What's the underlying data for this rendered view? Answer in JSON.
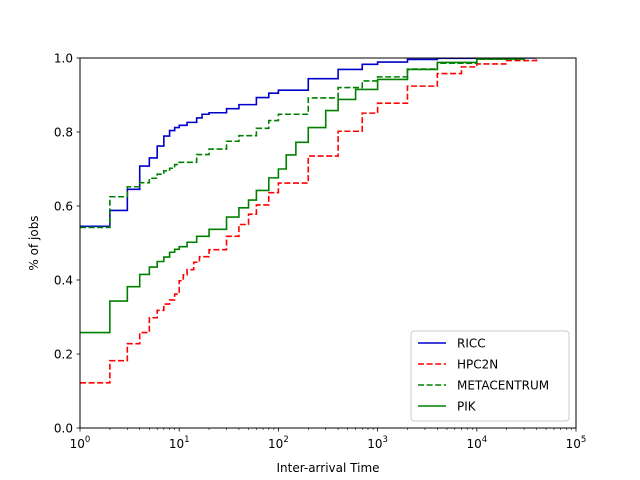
{
  "chart_data": {
    "type": "line",
    "title": "",
    "xlabel": "Inter-arrival Time",
    "ylabel": "% of jobs",
    "xscale": "log",
    "xlim": [
      1,
      100000
    ],
    "ylim": [
      0,
      1.0
    ],
    "x_ticks": [
      {
        "base": "10",
        "exp": "0"
      },
      {
        "base": "10",
        "exp": "1"
      },
      {
        "base": "10",
        "exp": "2"
      },
      {
        "base": "10",
        "exp": "3"
      },
      {
        "base": "10",
        "exp": "4"
      },
      {
        "base": "10",
        "exp": "5"
      }
    ],
    "y_ticks": [
      "0.0",
      "0.2",
      "0.4",
      "0.6",
      "0.8",
      "1.0"
    ],
    "grid": false,
    "legend_position": "bottom-right",
    "series": [
      {
        "name": "RICC",
        "color": "#0000cc",
        "dash": "solid",
        "step": true,
        "points": [
          [
            1,
            0.545
          ],
          [
            2,
            0.588
          ],
          [
            3,
            0.645
          ],
          [
            4,
            0.708
          ],
          [
            5,
            0.73
          ],
          [
            6,
            0.762
          ],
          [
            7,
            0.789
          ],
          [
            8,
            0.804
          ],
          [
            9,
            0.812
          ],
          [
            10,
            0.818
          ],
          [
            12,
            0.826
          ],
          [
            15,
            0.838
          ],
          [
            17,
            0.848
          ],
          [
            20,
            0.852
          ],
          [
            30,
            0.863
          ],
          [
            40,
            0.874
          ],
          [
            60,
            0.893
          ],
          [
            80,
            0.905
          ],
          [
            100,
            0.913
          ],
          [
            200,
            0.944
          ],
          [
            400,
            0.969
          ],
          [
            700,
            0.983
          ],
          [
            1000,
            0.989
          ],
          [
            2000,
            0.996
          ],
          [
            4000,
            0.999
          ],
          [
            10000,
            1.0
          ],
          [
            40000,
            1.0
          ]
        ]
      },
      {
        "name": "HPC2N",
        "color": "#ff0000",
        "dash": "dashed",
        "step": true,
        "points": [
          [
            1,
            0.122
          ],
          [
            2,
            0.182
          ],
          [
            3,
            0.228
          ],
          [
            4,
            0.258
          ],
          [
            5,
            0.298
          ],
          [
            6,
            0.318
          ],
          [
            7,
            0.335
          ],
          [
            8,
            0.346
          ],
          [
            9,
            0.362
          ],
          [
            10,
            0.398
          ],
          [
            11,
            0.414
          ],
          [
            12,
            0.428
          ],
          [
            14,
            0.448
          ],
          [
            16,
            0.463
          ],
          [
            20,
            0.482
          ],
          [
            30,
            0.518
          ],
          [
            40,
            0.55
          ],
          [
            50,
            0.578
          ],
          [
            60,
            0.603
          ],
          [
            80,
            0.636
          ],
          [
            100,
            0.662
          ],
          [
            200,
            0.735
          ],
          [
            400,
            0.802
          ],
          [
            700,
            0.851
          ],
          [
            1000,
            0.878
          ],
          [
            2000,
            0.924
          ],
          [
            4000,
            0.958
          ],
          [
            7000,
            0.976
          ],
          [
            10000,
            0.984
          ],
          [
            20000,
            0.993
          ],
          [
            40000,
            1.0
          ]
        ]
      },
      {
        "name": "METACENTRUM",
        "color": "#008000",
        "dash": "dashed",
        "step": true,
        "points": [
          [
            1,
            0.542
          ],
          [
            2,
            0.625
          ],
          [
            3,
            0.652
          ],
          [
            4,
            0.663
          ],
          [
            5,
            0.675
          ],
          [
            6,
            0.686
          ],
          [
            7,
            0.695
          ],
          [
            8,
            0.702
          ],
          [
            9,
            0.712
          ],
          [
            10,
            0.718
          ],
          [
            15,
            0.739
          ],
          [
            20,
            0.754
          ],
          [
            30,
            0.775
          ],
          [
            40,
            0.79
          ],
          [
            60,
            0.81
          ],
          [
            80,
            0.831
          ],
          [
            100,
            0.848
          ],
          [
            200,
            0.892
          ],
          [
            400,
            0.92
          ],
          [
            700,
            0.938
          ],
          [
            1000,
            0.949
          ],
          [
            2000,
            0.97
          ],
          [
            4000,
            0.986
          ],
          [
            10000,
            0.997
          ],
          [
            30000,
            1.0
          ]
        ]
      },
      {
        "name": "PIK",
        "color": "#008000",
        "dash": "solid",
        "step": true,
        "points": [
          [
            1,
            0.258
          ],
          [
            2,
            0.343
          ],
          [
            3,
            0.382
          ],
          [
            4,
            0.415
          ],
          [
            5,
            0.435
          ],
          [
            6,
            0.45
          ],
          [
            7,
            0.462
          ],
          [
            8,
            0.475
          ],
          [
            9,
            0.483
          ],
          [
            10,
            0.49
          ],
          [
            12,
            0.502
          ],
          [
            15,
            0.518
          ],
          [
            20,
            0.537
          ],
          [
            30,
            0.57
          ],
          [
            40,
            0.595
          ],
          [
            50,
            0.616
          ],
          [
            60,
            0.642
          ],
          [
            80,
            0.676
          ],
          [
            100,
            0.7
          ],
          [
            120,
            0.738
          ],
          [
            150,
            0.772
          ],
          [
            200,
            0.812
          ],
          [
            300,
            0.858
          ],
          [
            400,
            0.888
          ],
          [
            600,
            0.915
          ],
          [
            1000,
            0.942
          ],
          [
            2000,
            0.969
          ],
          [
            4000,
            0.988
          ],
          [
            10000,
            0.997
          ],
          [
            30000,
            1.0
          ]
        ]
      }
    ]
  }
}
